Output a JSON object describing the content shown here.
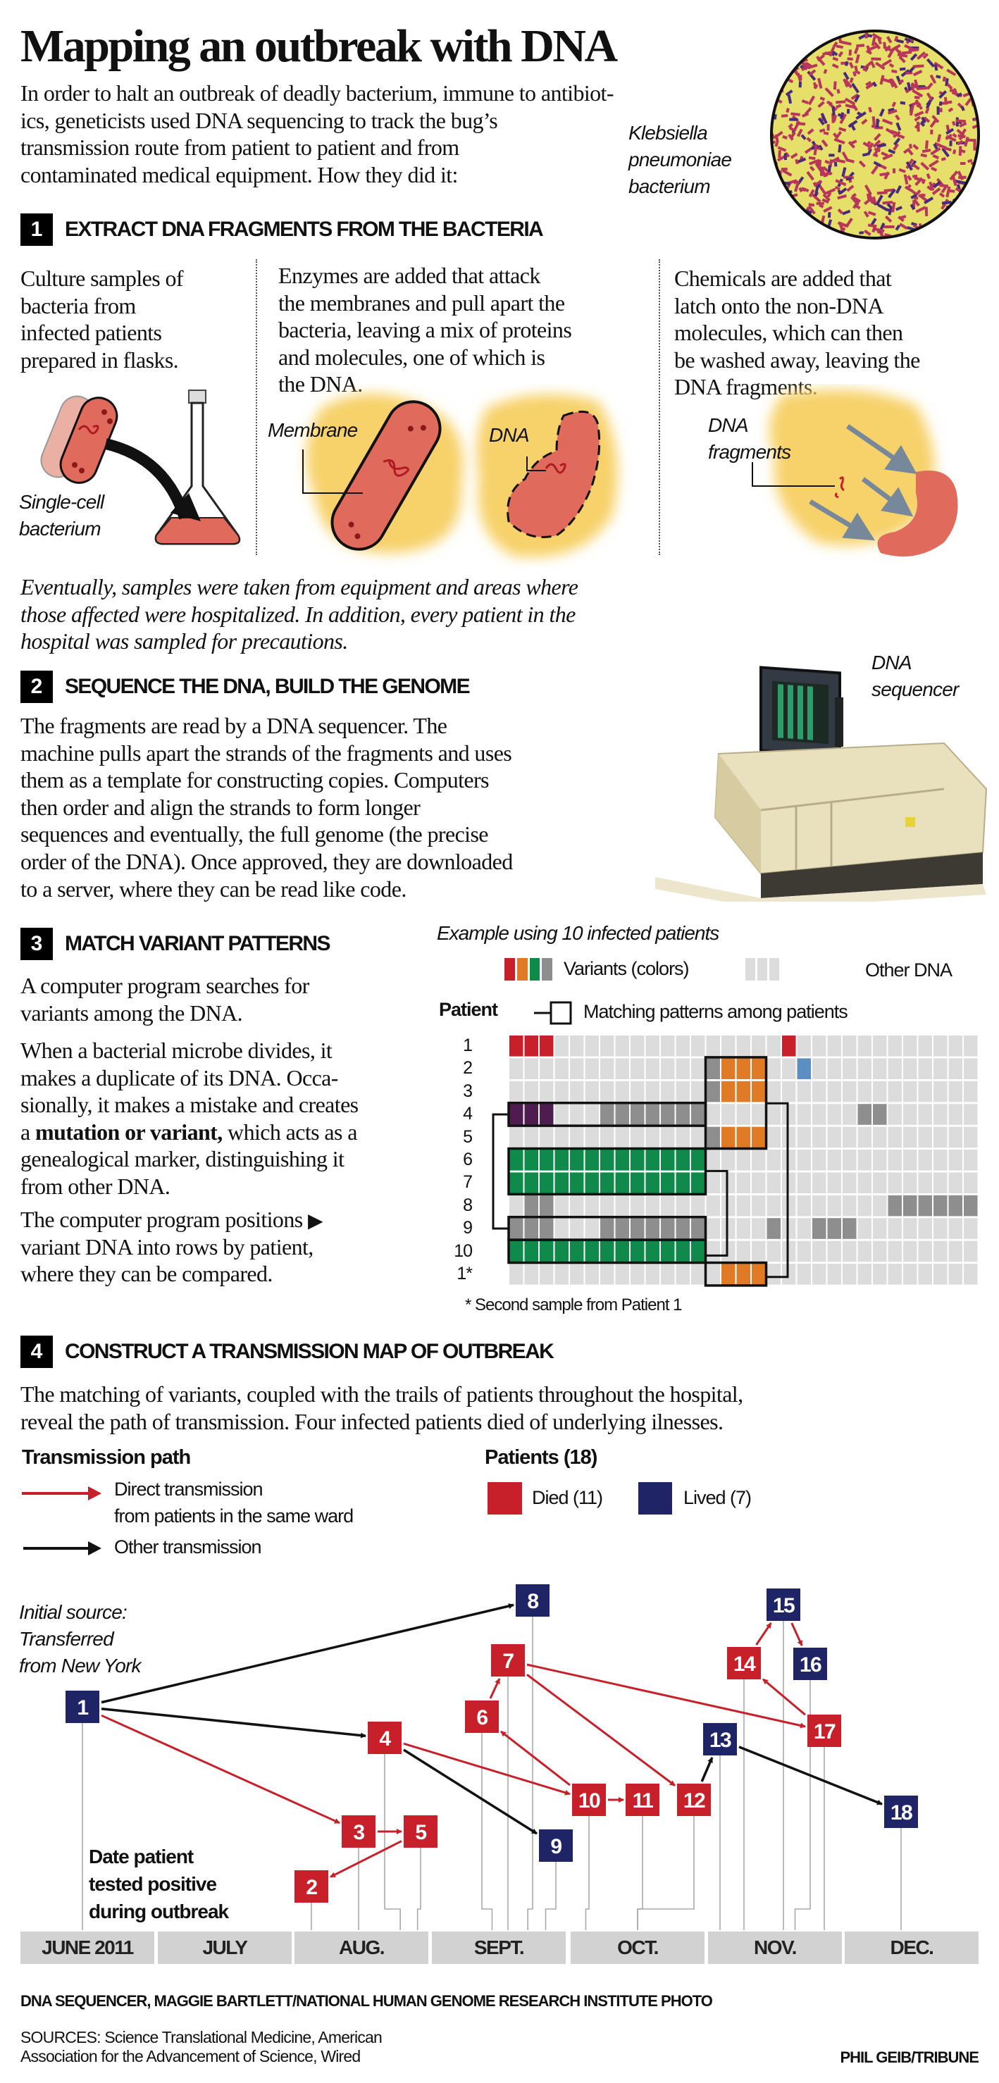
{
  "title": "Mapping an outbreak with DNA",
  "intro": [
    "In order to halt an outbreak of deadly bacterium, immune to antibiot-",
    "ics, geneticists used DNA sequencing to track the bug’s",
    "transmission route from patient to patient and from",
    "contaminated medical equipment. How they did it:"
  ],
  "bacterium_caption": [
    "Klebsiella",
    "pneumoniae",
    "bacterium"
  ],
  "sections": [
    {
      "number": "1",
      "heading": "EXTRACT DNA FRAGMENTS FROM THE BACTERIA"
    },
    {
      "number": "2",
      "heading": "SEQUENCE THE DNA, BUILD THE GENOME"
    },
    {
      "number": "3",
      "heading": "MATCH VARIANT PATTERNS"
    },
    {
      "number": "4",
      "heading": "CONSTRUCT A TRANSMISSION MAP OF OUTBREAK"
    }
  ],
  "step1": {
    "col1": [
      "Culture samples of",
      "bacteria from",
      "infected patients",
      "prepared in flasks."
    ],
    "col2": [
      "Enzymes are added that attack",
      "the membranes and pull apart the",
      "bacteria, leaving a mix of proteins",
      "and molecules, one of which is",
      "the DNA."
    ],
    "col3": [
      "Chemicals are added that",
      "latch onto the non-DNA",
      "molecules, which can then",
      "be washed away, leaving the",
      "DNA fragments."
    ],
    "labels": {
      "single_cell": [
        "Single-cell",
        "bacterium"
      ],
      "membrane": "Membrane",
      "dna": "DNA",
      "dna_fragments": [
        "DNA",
        "fragments"
      ]
    }
  },
  "note": [
    "Eventually, samples were taken from equipment and areas where",
    "those affected were hospitalized. In addition, every patient in the",
    "hospital was sampled for precautions."
  ],
  "step2": {
    "paragraph": [
      "The fragments are read by a DNA sequencer. The",
      "machine pulls apart the strands of the fragments and uses",
      "them as a template for constructing copies. Computers",
      "then order and align the strands to form longer",
      "sequences and eventually, the full genome (the precise",
      "order of the DNA). Once approved, they are downloaded",
      "to a server, where they can be read like code."
    ],
    "sequencer_caption": [
      "DNA",
      "sequencer"
    ]
  },
  "step3": {
    "p1": [
      "A computer program searches for",
      "variants among the DNA."
    ],
    "p2": [
      "When a bacterial microbe divides, it",
      "makes a duplicate of its DNA. Occa-",
      "sionally, it makes a mistake and creates"
    ],
    "p2_bold_line": {
      "pre": "a ",
      "bold": "mutation or variant,",
      "post": " which acts as a"
    },
    "p2_end": [
      "genealogical marker, distinguishing it",
      "from other DNA."
    ],
    "p3": [
      "The computer program positions",
      "variant DNA into rows by patient,",
      "where they can be compared."
    ],
    "example_title": "Example using 10 infected patients",
    "legend_variants": "Variants (colors)",
    "legend_other": "Other DNA",
    "patient_header": "Patient",
    "legend_matching": "Matching patterns among patients",
    "footnote": "* Second sample from Patient 1",
    "colors": {
      "R": "#c8202a",
      "O": "#e07a24",
      "G": "#0f8a4a",
      "g": "#8e8e8e",
      "P": "#4f1c4f",
      "B": "#5b8fc1",
      ".": "#dcdcdc"
    },
    "rows": [
      {
        "label": "1",
        "cells": "RRR...............R............"
      },
      {
        "label": "2",
        "cells": ".............gOOO..B..........."
      },
      {
        "label": "3",
        "cells": ".............gOOO.............."
      },
      {
        "label": "4",
        "cells": "PPP...ggggggg..........gg......"
      },
      {
        "label": "5",
        "cells": ".............gOOO.............."
      },
      {
        "label": "6",
        "cells": "GGGGGGGGGGGGG.................."
      },
      {
        "label": "7",
        "cells": "GGGGGGGGGGGGG.................."
      },
      {
        "label": "8",
        "cells": ".gg......................gggggg"
      },
      {
        "label": "9",
        "cells": "ggg...ggggggg....g..ggg........"
      },
      {
        "label": "10",
        "cells": "GGGGGGGGGGGGG.................."
      },
      {
        "label": "1*",
        "cells": "..............OOO.............."
      }
    ],
    "matches": [
      {
        "rows": [
          "2",
          "5"
        ],
        "pattern": "orange",
        "linked_to": "1*"
      },
      {
        "rows": [
          "4"
        ],
        "pattern": "purple/gray",
        "linked_to": "9"
      },
      {
        "rows": [
          "6",
          "7"
        ],
        "pattern": "green",
        "linked_to": "10"
      }
    ]
  },
  "step4": {
    "paragraph": [
      "The matching of variants, coupled with the trails of patients throughout the hospital,",
      "reveal the path of transmission. Four infected patients died of underlying ilnesses."
    ],
    "legend_path_title": "Transmission path",
    "legend_direct": [
      "Direct transmission",
      "from patients in the same ward"
    ],
    "legend_other": "Other transmission",
    "legend_patients_title": "Patients (18)",
    "legend_died": "Died (11)",
    "legend_lived": "Lived (7)",
    "colors": {
      "died": "#c8202a",
      "lived": "#1f2466",
      "direct": "#c8202a",
      "other": "#111111"
    },
    "initial_source": [
      "Initial source:",
      "Transferred",
      "from New York"
    ],
    "date_label": [
      "Date patient",
      "tested positive",
      "during outbreak"
    ],
    "months": [
      "JUNE 2011",
      "JULY",
      "AUG.",
      "SEPT.",
      "OCT.",
      "NOV.",
      "DEC."
    ],
    "patients": [
      {
        "id": "1",
        "status": "lived",
        "tested_positive": "2011-06-14"
      },
      {
        "id": "2",
        "status": "died",
        "tested_positive": "2011-08-04"
      },
      {
        "id": "3",
        "status": "died",
        "tested_positive": "2011-08-15"
      },
      {
        "id": "4",
        "status": "died",
        "tested_positive": "2011-08-25"
      },
      {
        "id": "5",
        "status": "died",
        "tested_positive": "2011-08-29"
      },
      {
        "id": "6",
        "status": "died",
        "tested_positive": "2011-09-14"
      },
      {
        "id": "7",
        "status": "died",
        "tested_positive": "2011-09-18"
      },
      {
        "id": "8",
        "status": "lived",
        "tested_positive": "2011-09-22"
      },
      {
        "id": "9",
        "status": "lived",
        "tested_positive": "2011-09-26"
      },
      {
        "id": "10",
        "status": "died",
        "tested_positive": "2011-10-04"
      },
      {
        "id": "11",
        "status": "died",
        "tested_positive": "2011-10-16"
      },
      {
        "id": "12",
        "status": "died",
        "tested_positive": "2011-10-16"
      },
      {
        "id": "13",
        "status": "lived",
        "tested_positive": "2011-11-03"
      },
      {
        "id": "14",
        "status": "died",
        "tested_positive": "2011-11-09"
      },
      {
        "id": "15",
        "status": "lived",
        "tested_positive": "2011-11-18"
      },
      {
        "id": "16",
        "status": "lived",
        "tested_positive": "2011-11-20"
      },
      {
        "id": "17",
        "status": "died",
        "tested_positive": "2011-11-26"
      },
      {
        "id": "18",
        "status": "lived",
        "tested_positive": "2011-12-13"
      }
    ],
    "transmissions": [
      {
        "from": "1",
        "to": "8",
        "type": "other"
      },
      {
        "from": "1",
        "to": "4",
        "type": "other"
      },
      {
        "from": "1",
        "to": "3",
        "type": "direct"
      },
      {
        "from": "3",
        "to": "5",
        "type": "direct"
      },
      {
        "from": "5",
        "to": "2",
        "type": "direct"
      },
      {
        "from": "4",
        "to": "10",
        "type": "direct"
      },
      {
        "from": "4",
        "to": "9",
        "type": "other"
      },
      {
        "from": "10",
        "to": "6",
        "type": "direct"
      },
      {
        "from": "6",
        "to": "7",
        "type": "direct"
      },
      {
        "from": "7",
        "to": "12",
        "type": "direct"
      },
      {
        "from": "7",
        "to": "17",
        "type": "direct"
      },
      {
        "from": "10",
        "to": "11",
        "type": "direct"
      },
      {
        "from": "12",
        "to": "13",
        "type": "other"
      },
      {
        "from": "13",
        "to": "18",
        "type": "other"
      },
      {
        "from": "17",
        "to": "14",
        "type": "direct"
      },
      {
        "from": "14",
        "to": "15",
        "type": "direct"
      },
      {
        "from": "15",
        "to": "16",
        "type": "direct"
      }
    ]
  },
  "credits": {
    "photo": "DNA SEQUENCER, MAGGIE BARTLETT/NATIONAL HUMAN GENOME RESEARCH INSTITUTE PHOTO",
    "sources": [
      "SOURCES: Science Translational Medicine, American",
      "Association for the Advancement of Science, Wired"
    ],
    "byline": "PHIL GEIB/TRIBUNE"
  }
}
